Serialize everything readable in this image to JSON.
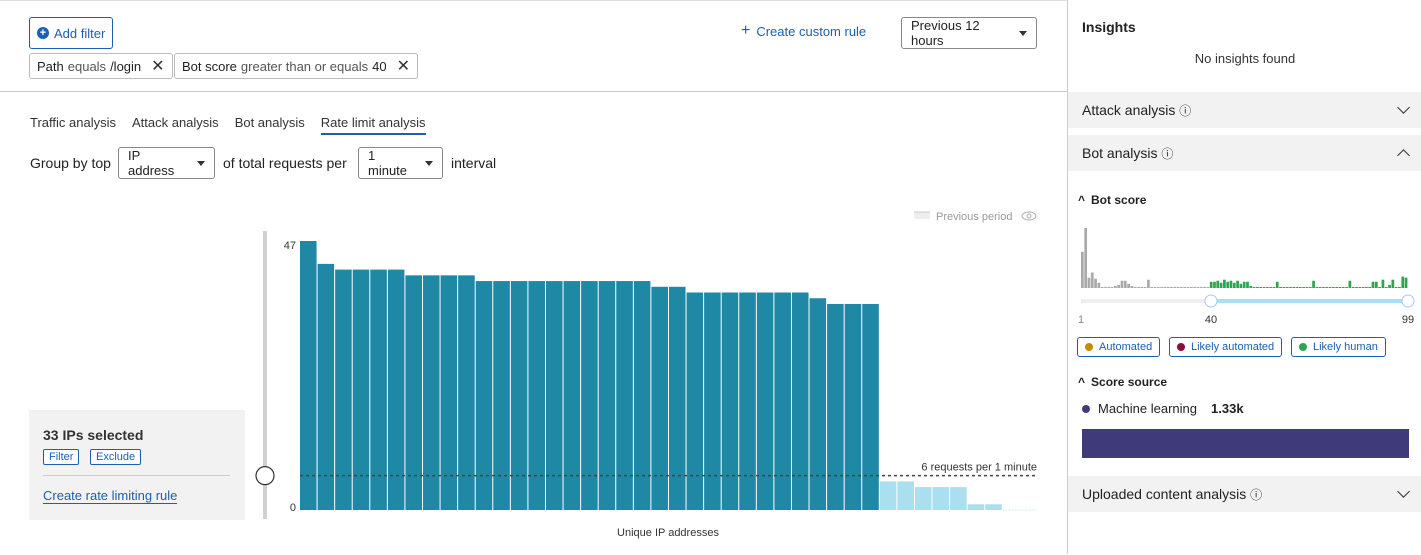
{
  "toolbar": {
    "add_filter": "Add filter",
    "create_custom_rule": "Create custom rule",
    "time_range": "Previous 12 hours"
  },
  "filters": [
    {
      "field": "Path",
      "op": "equals",
      "value": "/login"
    },
    {
      "field": "Bot score",
      "op": "greater than or equals",
      "value": "40"
    }
  ],
  "tabs": [
    {
      "label": "Traffic analysis",
      "active": false
    },
    {
      "label": "Attack analysis",
      "active": false
    },
    {
      "label": "Bot analysis",
      "active": false
    },
    {
      "label": "Rate limit analysis",
      "active": true
    }
  ],
  "groupby": {
    "prefix": "Group by top",
    "field": "IP address",
    "middle": "of total requests per",
    "interval": "1 minute",
    "suffix": "interval"
  },
  "selection": {
    "title": "33 IPs selected",
    "filter": "Filter",
    "exclude": "Exclude",
    "create_rule": "Create rate limiting rule"
  },
  "chart_data": {
    "type": "bar",
    "xlabel": "Unique IP addresses",
    "ylabel": "",
    "y_ticks": [
      "47",
      "0"
    ],
    "ylim": [
      0,
      47
    ],
    "values": [
      47,
      43,
      42,
      42,
      42,
      42,
      41,
      41,
      41,
      41,
      40,
      40,
      40,
      40,
      40,
      40,
      40,
      40,
      40,
      40,
      39,
      39,
      38,
      38,
      38,
      38,
      38,
      38,
      38,
      37,
      36,
      36,
      36,
      5,
      5,
      4,
      4,
      4,
      1,
      1,
      0,
      0
    ],
    "selected_count": 33,
    "threshold": 6,
    "threshold_label": "6 requests per 1 minute",
    "legend": "Previous period",
    "colors": {
      "selected": "#1f88a5",
      "unselected": "#a9dfee"
    }
  },
  "insights": {
    "title": "Insights",
    "empty": "No insights found",
    "sections": {
      "attack": "Attack analysis",
      "bot": "Bot analysis",
      "uploaded": "Uploaded content analysis"
    },
    "bot_score": {
      "title": "Bot score",
      "min": "1",
      "selected": "40",
      "max": "99",
      "histogram": [
        35,
        58,
        10,
        15,
        9,
        5,
        1,
        1,
        1,
        1,
        2,
        3,
        7,
        7,
        4,
        2,
        1,
        1,
        1,
        1,
        8,
        1,
        1,
        1,
        1,
        1,
        1,
        1,
        1,
        1,
        1,
        1,
        1,
        1,
        1,
        1,
        1,
        1,
        1,
        6,
        6,
        7,
        5,
        8,
        6,
        7,
        5,
        7,
        4,
        6,
        6,
        2,
        1,
        1,
        1,
        1,
        1,
        1,
        1,
        6,
        1,
        1,
        1,
        1,
        1,
        1,
        1,
        1,
        1,
        1,
        7,
        1,
        1,
        1,
        1,
        1,
        1,
        1,
        1,
        1,
        1,
        7,
        1,
        1,
        1,
        1,
        1,
        1,
        6,
        6,
        1,
        8,
        1,
        3,
        8,
        1,
        1,
        11,
        10
      ],
      "legend": [
        {
          "label": "Automated",
          "color": "#c48a0c"
        },
        {
          "label": "Likely automated",
          "color": "#8b0f3a"
        },
        {
          "label": "Likely human",
          "color": "#2ea44f"
        }
      ]
    },
    "score_source": {
      "title": "Score source",
      "items": [
        {
          "label": "Machine learning",
          "value": "1.33k",
          "color": "#3f3a7a"
        }
      ]
    }
  }
}
